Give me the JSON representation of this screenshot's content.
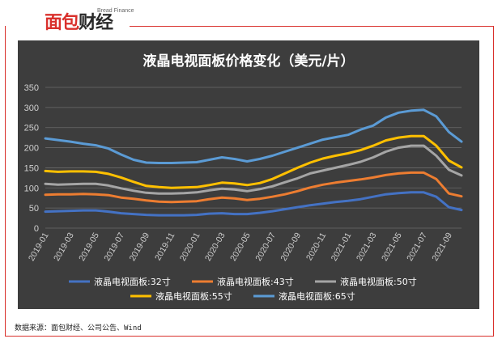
{
  "brand": {
    "logo_a": "面包",
    "logo_b": "财经",
    "tagline": "Bread Finance"
  },
  "source": "数据来源：面包财经、公司公告、Wind",
  "chart_data": {
    "type": "line",
    "title": "液晶电视面板价格变化（美元/片）",
    "xlabel": "",
    "ylabel": "",
    "ylim": [
      0,
      350
    ],
    "yticks": [
      0,
      50,
      100,
      150,
      200,
      250,
      300,
      350
    ],
    "grid": true,
    "legend_position": "bottom",
    "x": [
      "2019-01",
      "2019-02",
      "2019-03",
      "2019-04",
      "2019-05",
      "2019-06",
      "2019-07",
      "2019-08",
      "2019-09",
      "2019-10",
      "2019-11",
      "2019-12",
      "2020-01",
      "2020-02",
      "2020-03",
      "2020-04",
      "2020-05",
      "2020-06",
      "2020-07",
      "2020-08",
      "2020-09",
      "2020-10",
      "2020-11",
      "2020-12",
      "2021-01",
      "2021-02",
      "2021-03",
      "2021-04",
      "2021-05",
      "2021-06",
      "2021-07",
      "2021-08",
      "2021-09",
      "2021-10"
    ],
    "xtick_labels": [
      "2019-01",
      "2019-03",
      "2019-05",
      "2019-07",
      "2019-09",
      "2019-11",
      "2020-01",
      "2020-03",
      "2020-05",
      "2020-07",
      "2020-09",
      "2020-11",
      "2021-01",
      "2021-03",
      "2021-05",
      "2021-07",
      "2021-09"
    ],
    "series": [
      {
        "name": "液晶电视面板:32寸",
        "color": "#4472c4",
        "values": [
          41,
          42,
          43,
          44,
          44,
          41,
          37,
          35,
          33,
          32,
          32,
          32,
          33,
          36,
          37,
          35,
          35,
          38,
          42,
          47,
          52,
          57,
          61,
          65,
          68,
          72,
          78,
          84,
          87,
          89,
          89,
          78,
          52,
          45
        ]
      },
      {
        "name": "液晶电视面板:43寸",
        "color": "#ed7d31",
        "values": [
          83,
          84,
          84,
          85,
          84,
          82,
          76,
          73,
          69,
          66,
          65,
          66,
          67,
          72,
          76,
          74,
          70,
          73,
          78,
          84,
          92,
          101,
          108,
          113,
          117,
          121,
          126,
          132,
          136,
          138,
          138,
          122,
          86,
          79
        ]
      },
      {
        "name": "液晶电视面板:50寸",
        "color": "#a5a5a5",
        "values": [
          110,
          108,
          109,
          110,
          110,
          106,
          99,
          93,
          88,
          86,
          86,
          87,
          89,
          94,
          98,
          96,
          92,
          97,
          104,
          114,
          124,
          136,
          143,
          150,
          157,
          165,
          176,
          190,
          200,
          205,
          205,
          180,
          145,
          131
        ]
      },
      {
        "name": "液晶电视面板:55寸",
        "color": "#ffc000",
        "values": [
          142,
          140,
          141,
          141,
          140,
          135,
          126,
          115,
          105,
          102,
          100,
          101,
          102,
          107,
          113,
          111,
          107,
          112,
          122,
          136,
          150,
          163,
          173,
          180,
          186,
          194,
          205,
          218,
          225,
          229,
          229,
          205,
          168,
          151
        ]
      },
      {
        "name": "液晶电视面板:65寸",
        "color": "#5b9bd5",
        "values": [
          223,
          219,
          215,
          210,
          206,
          198,
          183,
          170,
          163,
          162,
          162,
          163,
          164,
          170,
          176,
          172,
          166,
          172,
          180,
          190,
          200,
          210,
          220,
          226,
          232,
          245,
          255,
          275,
          287,
          292,
          294,
          278,
          239,
          215
        ]
      }
    ]
  }
}
